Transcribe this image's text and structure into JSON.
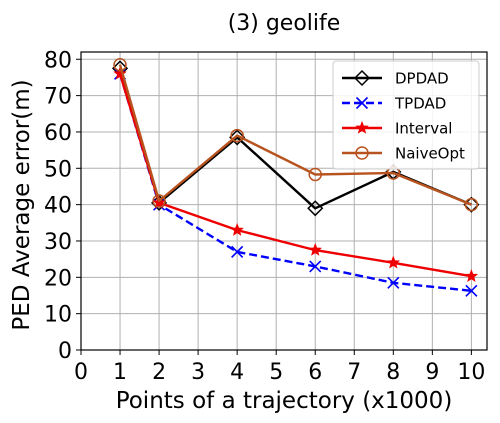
{
  "chart_data": {
    "type": "line",
    "title": "(3) geolife",
    "xlabel": "Points of a trajectory (x1000)",
    "ylabel": "PED Average error(m)",
    "xlim": [
      0,
      10.4
    ],
    "ylim": [
      0,
      82
    ],
    "xticks": [
      "0",
      "1",
      "2",
      "3",
      "4",
      "5",
      "6",
      "7",
      "8",
      "9",
      "10"
    ],
    "yticks": [
      "0",
      "10",
      "20",
      "30",
      "40",
      "50",
      "60",
      "70",
      "80"
    ],
    "grid": true,
    "legend_position": "top-right",
    "x": [
      1,
      2,
      4,
      6,
      8,
      10
    ],
    "series": [
      {
        "name": "DPDAD",
        "values": [
          77.5,
          40.5,
          58.5,
          39,
          49,
          40
        ],
        "color": "#000000",
        "marker": "diamond-open",
        "dash": "solid"
      },
      {
        "name": "TPDAD",
        "values": [
          76,
          40,
          27,
          23,
          18.5,
          16.3
        ],
        "color": "#0000ff",
        "marker": "x",
        "dash": "dashed"
      },
      {
        "name": "Interval",
        "values": [
          76,
          40.5,
          33,
          27.5,
          24,
          20.3
        ],
        "color": "#ee0000",
        "marker": "star",
        "dash": "solid"
      },
      {
        "name": "NaiveOpt",
        "values": [
          78.5,
          41,
          59,
          48.3,
          48.7,
          40
        ],
        "color": "#b8531f",
        "marker": "circle-open",
        "dash": "solid"
      }
    ]
  }
}
